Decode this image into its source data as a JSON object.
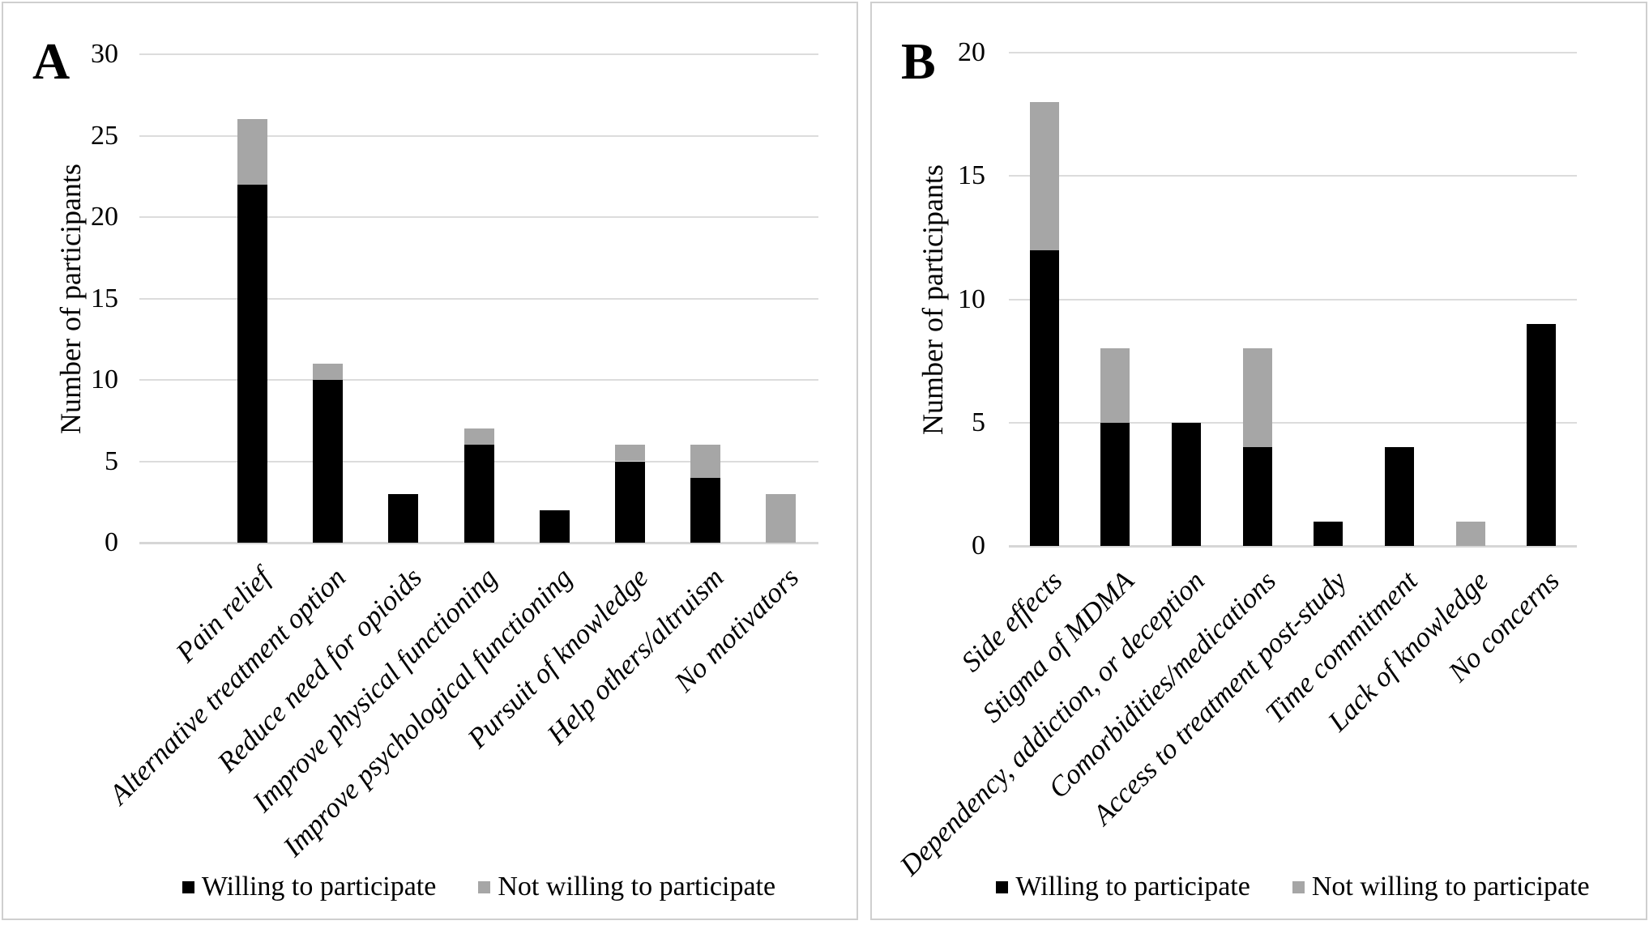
{
  "figure": {
    "panels": [
      {
        "label": "A"
      },
      {
        "label": "B"
      }
    ],
    "colors": {
      "willing": "#000000",
      "not_willing": "#a6a6a6",
      "gridline": "#dcdcdc",
      "panel_border": "#cfcfcf"
    }
  },
  "chart_data": [
    {
      "panel": "A",
      "type": "bar",
      "stacked": true,
      "title": "",
      "xlabel": "",
      "ylabel": "Number of participants",
      "ylim": [
        0,
        30
      ],
      "yticks": [
        0,
        5,
        10,
        15,
        20,
        25,
        30
      ],
      "grid": true,
      "legend_position": "bottom",
      "categories": [
        "Pain relief",
        "Alternative treatment option",
        "Reduce need for opioids",
        "Improve physical functioning",
        "Improve psychological functioning",
        "Pursuit of knowledge",
        "Help others/altruism",
        "No motivators"
      ],
      "series": [
        {
          "name": "Willing to participate",
          "color": "#000000",
          "values": [
            22,
            10,
            3,
            6,
            2,
            5,
            4,
            0
          ]
        },
        {
          "name": "Not willing to participate",
          "color": "#a6a6a6",
          "values": [
            4,
            1,
            0,
            1,
            0,
            1,
            2,
            3
          ]
        }
      ],
      "totals": [
        26,
        11,
        3,
        7,
        2,
        6,
        6,
        3
      ]
    },
    {
      "panel": "B",
      "type": "bar",
      "stacked": true,
      "title": "",
      "xlabel": "",
      "ylabel": "Number of participants",
      "ylim": [
        0,
        20
      ],
      "yticks": [
        0,
        5,
        10,
        15,
        20
      ],
      "grid": true,
      "legend_position": "bottom",
      "categories": [
        "Side effects",
        "Stigma of MDMA",
        "Dependency, addiction, or deception",
        "Comorbidities/medications",
        "Access to treatment post-study",
        "Time commitment",
        "Lack of knowledge",
        "No concerns"
      ],
      "series": [
        {
          "name": "Willing to participate",
          "color": "#000000",
          "values": [
            12,
            5,
            5,
            4,
            1,
            4,
            0,
            9
          ]
        },
        {
          "name": "Not willing to participate",
          "color": "#a6a6a6",
          "values": [
            6,
            3,
            0,
            4,
            0,
            0,
            1,
            0
          ]
        }
      ],
      "totals": [
        18,
        8,
        5,
        8,
        1,
        4,
        1,
        9
      ]
    }
  ]
}
